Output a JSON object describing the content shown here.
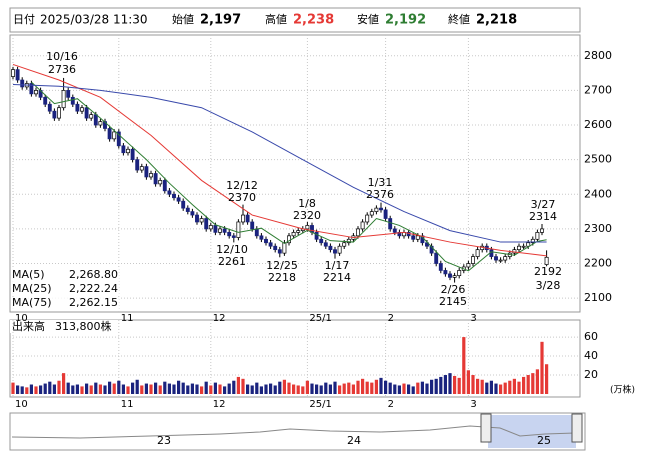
{
  "header": {
    "date_label": "日付",
    "date": "2025/03/28 11:30",
    "open_label": "始値",
    "open": "2,197",
    "high_label": "高値",
    "high": "2,238",
    "low_label": "安値",
    "low": "2,192",
    "close_label": "終値",
    "close": "2,218"
  },
  "chart_data": {
    "type": "candlestick",
    "ylim": [
      2060,
      2860
    ],
    "yticks": [
      2100,
      2200,
      2300,
      2400,
      2500,
      2600,
      2700,
      2800
    ],
    "grid": true,
    "up_color": "#ffffff",
    "down_color": "#1a237e",
    "edge_color": "#000000",
    "ohlc": [
      [
        2740,
        2768,
        2732,
        2760
      ],
      [
        2760,
        2768,
        2722,
        2730
      ],
      [
        2730,
        2738,
        2702,
        2710
      ],
      [
        2710,
        2728,
        2702,
        2720
      ],
      [
        2720,
        2728,
        2682,
        2690
      ],
      [
        2690,
        2708,
        2682,
        2700
      ],
      [
        2700,
        2708,
        2672,
        2680
      ],
      [
        2680,
        2688,
        2652,
        2660
      ],
      [
        2660,
        2668,
        2632,
        2640
      ],
      [
        2640,
        2648,
        2612,
        2620
      ],
      [
        2620,
        2658,
        2612,
        2650
      ],
      [
        2650,
        2736,
        2642,
        2700
      ],
      [
        2700,
        2708,
        2672,
        2680
      ],
      [
        2680,
        2688,
        2652,
        2660
      ],
      [
        2660,
        2668,
        2632,
        2640
      ],
      [
        2640,
        2658,
        2632,
        2650
      ],
      [
        2650,
        2658,
        2612,
        2620
      ],
      [
        2620,
        2638,
        2612,
        2630
      ],
      [
        2630,
        2638,
        2592,
        2600
      ],
      [
        2600,
        2618,
        2592,
        2610
      ],
      [
        2610,
        2618,
        2582,
        2590
      ],
      [
        2590,
        2598,
        2552,
        2560
      ],
      [
        2560,
        2588,
        2552,
        2580
      ],
      [
        2580,
        2588,
        2532,
        2540
      ],
      [
        2540,
        2548,
        2512,
        2520
      ],
      [
        2520,
        2538,
        2512,
        2530
      ],
      [
        2530,
        2538,
        2492,
        2500
      ],
      [
        2500,
        2508,
        2462,
        2470
      ],
      [
        2470,
        2488,
        2462,
        2480
      ],
      [
        2480,
        2488,
        2442,
        2450
      ],
      [
        2450,
        2468,
        2442,
        2460
      ],
      [
        2460,
        2468,
        2422,
        2430
      ],
      [
        2430,
        2448,
        2422,
        2440
      ],
      [
        2440,
        2448,
        2402,
        2410
      ],
      [
        2410,
        2418,
        2392,
        2400
      ],
      [
        2400,
        2408,
        2382,
        2390
      ],
      [
        2390,
        2398,
        2372,
        2380
      ],
      [
        2380,
        2388,
        2352,
        2360
      ],
      [
        2360,
        2368,
        2342,
        2350
      ],
      [
        2350,
        2358,
        2332,
        2340
      ],
      [
        2340,
        2348,
        2312,
        2320
      ],
      [
        2320,
        2338,
        2312,
        2330
      ],
      [
        2330,
        2338,
        2292,
        2300
      ],
      [
        2300,
        2318,
        2292,
        2310
      ],
      [
        2310,
        2318,
        2282,
        2290
      ],
      [
        2290,
        2308,
        2282,
        2300
      ],
      [
        2300,
        2308,
        2282,
        2290
      ],
      [
        2290,
        2298,
        2272,
        2280
      ],
      [
        2280,
        2288,
        2261,
        2275
      ],
      [
        2275,
        2328,
        2267,
        2320
      ],
      [
        2320,
        2370,
        2312,
        2340
      ],
      [
        2340,
        2348,
        2312,
        2320
      ],
      [
        2320,
        2328,
        2292,
        2300
      ],
      [
        2300,
        2308,
        2272,
        2280
      ],
      [
        2280,
        2288,
        2262,
        2270
      ],
      [
        2270,
        2278,
        2252,
        2260
      ],
      [
        2260,
        2268,
        2242,
        2250
      ],
      [
        2250,
        2258,
        2232,
        2240
      ],
      [
        2240,
        2248,
        2218,
        2230
      ],
      [
        2230,
        2268,
        2222,
        2260
      ],
      [
        2260,
        2288,
        2252,
        2280
      ],
      [
        2280,
        2298,
        2272,
        2290
      ],
      [
        2290,
        2303,
        2282,
        2295
      ],
      [
        2295,
        2308,
        2287,
        2300
      ],
      [
        2300,
        2320,
        2292,
        2310
      ],
      [
        2310,
        2318,
        2282,
        2290
      ],
      [
        2290,
        2298,
        2262,
        2270
      ],
      [
        2270,
        2278,
        2252,
        2260
      ],
      [
        2260,
        2268,
        2242,
        2250
      ],
      [
        2250,
        2258,
        2232,
        2240
      ],
      [
        2240,
        2248,
        2214,
        2230
      ],
      [
        2230,
        2258,
        2222,
        2250
      ],
      [
        2250,
        2268,
        2242,
        2260
      ],
      [
        2260,
        2278,
        2252,
        2270
      ],
      [
        2270,
        2288,
        2262,
        2280
      ],
      [
        2280,
        2308,
        2272,
        2300
      ],
      [
        2300,
        2328,
        2292,
        2320
      ],
      [
        2320,
        2348,
        2312,
        2340
      ],
      [
        2340,
        2358,
        2332,
        2350
      ],
      [
        2350,
        2368,
        2342,
        2360
      ],
      [
        2360,
        2376,
        2347,
        2355
      ],
      [
        2355,
        2363,
        2322,
        2330
      ],
      [
        2330,
        2338,
        2292,
        2300
      ],
      [
        2300,
        2308,
        2282,
        2290
      ],
      [
        2290,
        2298,
        2272,
        2280
      ],
      [
        2280,
        2298,
        2272,
        2290
      ],
      [
        2290,
        2298,
        2272,
        2280
      ],
      [
        2280,
        2288,
        2262,
        2270
      ],
      [
        2270,
        2288,
        2262,
        2280
      ],
      [
        2280,
        2288,
        2252,
        2260
      ],
      [
        2260,
        2268,
        2242,
        2250
      ],
      [
        2250,
        2258,
        2222,
        2230
      ],
      [
        2230,
        2238,
        2192,
        2200
      ],
      [
        2200,
        2208,
        2172,
        2180
      ],
      [
        2180,
        2188,
        2162,
        2170
      ],
      [
        2170,
        2178,
        2152,
        2160
      ],
      [
        2160,
        2173,
        2145,
        2165
      ],
      [
        2165,
        2188,
        2157,
        2180
      ],
      [
        2180,
        2198,
        2172,
        2190
      ],
      [
        2190,
        2208,
        2182,
        2200
      ],
      [
        2200,
        2228,
        2192,
        2220
      ],
      [
        2220,
        2248,
        2212,
        2240
      ],
      [
        2240,
        2258,
        2232,
        2250
      ],
      [
        2250,
        2258,
        2232,
        2240
      ],
      [
        2240,
        2248,
        2212,
        2220
      ],
      [
        2220,
        2228,
        2202,
        2210
      ],
      [
        2210,
        2218,
        2202,
        2210
      ],
      [
        2210,
        2228,
        2202,
        2220
      ],
      [
        2220,
        2238,
        2212,
        2230
      ],
      [
        2230,
        2248,
        2222,
        2240
      ],
      [
        2240,
        2258,
        2232,
        2250
      ],
      [
        2250,
        2258,
        2242,
        2250
      ],
      [
        2250,
        2268,
        2242,
        2260
      ],
      [
        2260,
        2278,
        2252,
        2270
      ],
      [
        2270,
        2298,
        2262,
        2290
      ],
      [
        2290,
        2314,
        2282,
        2300
      ],
      [
        2197,
        2238,
        2192,
        2218
      ]
    ],
    "month_labels": [
      {
        "index": 0,
        "label": "10"
      },
      {
        "index": 23,
        "label": "11"
      },
      {
        "index": 43,
        "label": "12"
      },
      {
        "index": 64,
        "label": "25/1"
      },
      {
        "index": 81,
        "label": "2"
      },
      {
        "index": 99,
        "label": "3"
      }
    ],
    "ma": [
      {
        "name": "MA(5)",
        "legend_value": "2,268.80",
        "color": "#2e7d32",
        "x": [
          4,
          9,
          14,
          19,
          24,
          29,
          34,
          39,
          44,
          49,
          54,
          59,
          64,
          69,
          74,
          79,
          84,
          89,
          94,
          99,
          104,
          109,
          114,
          116
        ],
        "values": [
          2724,
          2662,
          2676,
          2620,
          2560,
          2500,
          2432,
          2370,
          2312,
          2290,
          2302,
          2258,
          2296,
          2266,
          2262,
          2330,
          2310,
          2276,
          2206,
          2179,
          2234,
          2224,
          2264,
          2268.8
        ]
      },
      {
        "name": "MA(25)",
        "legend_value": "2,222.24",
        "color": "#e53935",
        "x": [
          0,
          10,
          19,
          30,
          41,
          52,
          63,
          74,
          85,
          95,
          106,
          116
        ],
        "values": [
          2775,
          2730,
          2680,
          2570,
          2440,
          2340,
          2300,
          2275,
          2290,
          2262,
          2238,
          2222.24
        ]
      },
      {
        "name": "MA(75)",
        "legend_value": "2,262.15",
        "color": "#3949ab",
        "x": [
          0,
          10,
          19,
          30,
          41,
          52,
          63,
          74,
          85,
          95,
          106,
          116
        ],
        "values": [
          2717,
          2712,
          2700,
          2680,
          2650,
          2580,
          2500,
          2420,
          2350,
          2295,
          2262,
          2262.15
        ]
      }
    ],
    "annotations": [
      {
        "date": "10/16",
        "price": "2736"
      },
      {
        "date": "12/12",
        "price": "2370"
      },
      {
        "date": "12/10",
        "price": "2261"
      },
      {
        "date": "1/8",
        "price": "2320"
      },
      {
        "date": "12/25",
        "price": "2218"
      },
      {
        "date": "1/17",
        "price": "2214"
      },
      {
        "date": "1/31",
        "price": "2376"
      },
      {
        "date": "2/26",
        "price": "2145"
      },
      {
        "date": "3/27",
        "price": "2314"
      },
      {
        "date": "3/28",
        "price": "2192"
      }
    ]
  },
  "volume": {
    "label": "出来高",
    "last": "313,800株",
    "unit": "(万株)",
    "ylim": [
      0,
      78
    ],
    "yticks": [
      20,
      40,
      60
    ],
    "values": [
      12,
      9,
      8,
      7,
      10,
      8,
      9,
      11,
      13,
      10,
      14,
      22,
      12,
      9,
      10,
      8,
      11,
      9,
      12,
      10,
      9,
      13,
      11,
      14,
      10,
      8,
      12,
      15,
      9,
      11,
      10,
      12,
      9,
      13,
      11,
      10,
      14,
      12,
      9,
      11,
      10,
      8,
      13,
      9,
      12,
      10,
      8,
      11,
      14,
      18,
      16,
      10,
      9,
      12,
      8,
      10,
      11,
      9,
      13,
      15,
      12,
      10,
      9,
      8,
      14,
      11,
      10,
      9,
      12,
      10,
      13,
      9,
      11,
      12,
      10,
      14,
      16,
      13,
      12,
      15,
      17,
      14,
      12,
      10,
      9,
      11,
      10,
      8,
      12,
      13,
      11,
      15,
      16,
      18,
      20,
      22,
      19,
      17,
      60,
      25,
      20,
      16,
      15,
      12,
      14,
      11,
      10,
      12,
      14,
      16,
      13,
      18,
      20,
      22,
      26,
      55,
      31.38
    ]
  },
  "nav": {
    "labels": [
      "23",
      "24",
      "25"
    ]
  }
}
